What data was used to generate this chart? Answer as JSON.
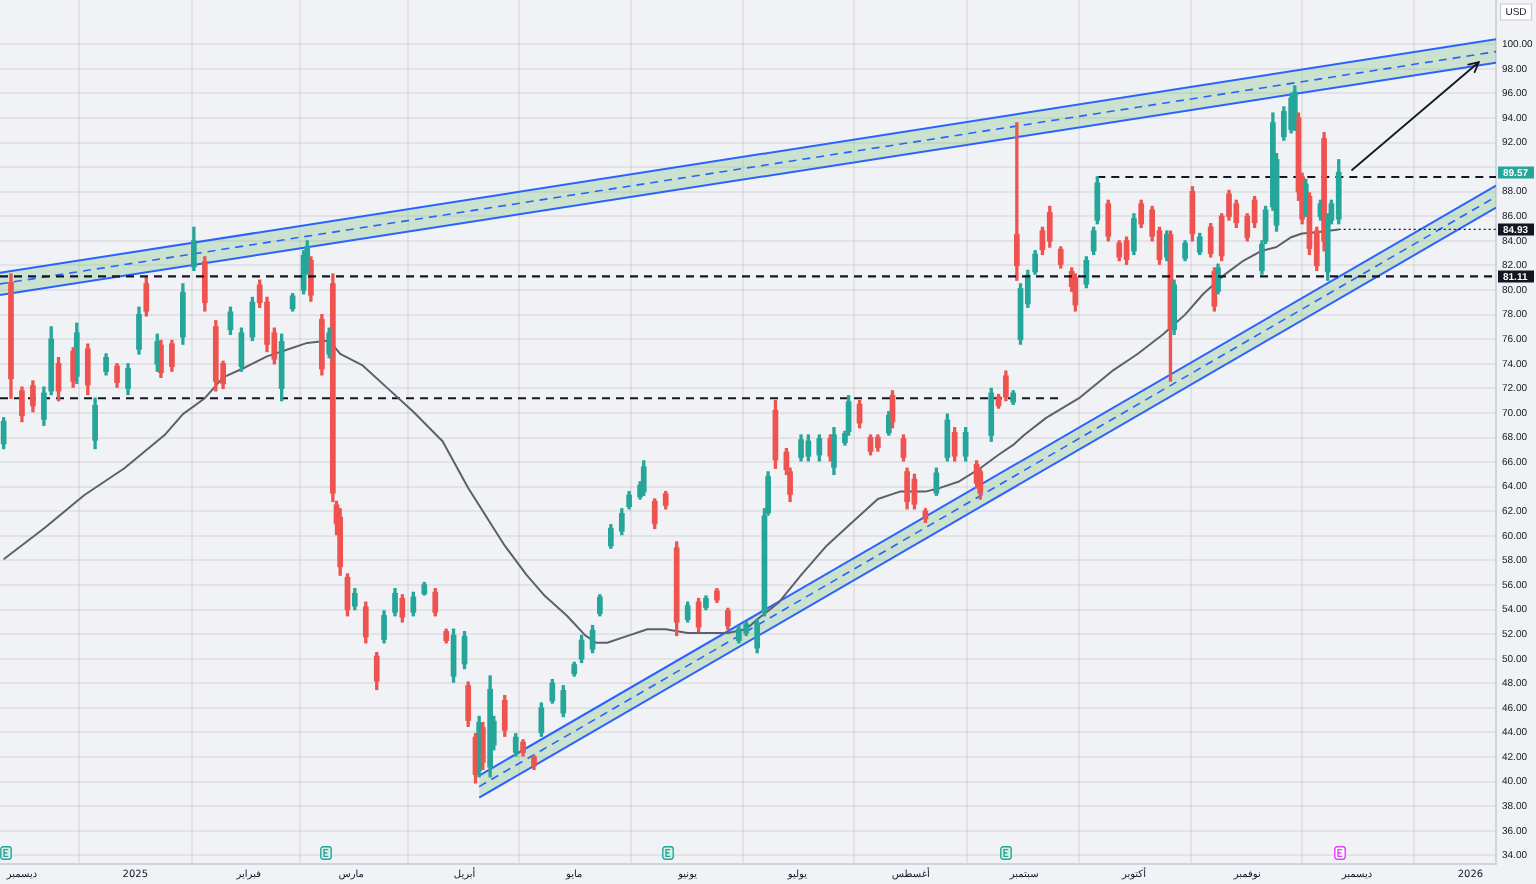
{
  "chart_data": {
    "type": "candlestick",
    "ylabel": "USD",
    "xlim": [
      "2024-11-25",
      "2026-01-08"
    ],
    "xticks": [
      {
        "value": "2024-12-01",
        "label": "ديسمبر"
      },
      {
        "value": "2025-01-01",
        "label": "2025"
      },
      {
        "value": "2025-02-01",
        "label": "فبراير"
      },
      {
        "value": "2025-03-01",
        "label": "مارس"
      },
      {
        "value": "2025-04-01",
        "label": "أبريل"
      },
      {
        "value": "2025-05-01",
        "label": "مايو"
      },
      {
        "value": "2025-06-01",
        "label": "يونيو"
      },
      {
        "value": "2025-07-01",
        "label": "يوليو"
      },
      {
        "value": "2025-08-01",
        "label": "أغسطس"
      },
      {
        "value": "2025-09-01",
        "label": "سبتمبر"
      },
      {
        "value": "2025-10-01",
        "label": "أكتوبر"
      },
      {
        "value": "2025-11-01",
        "label": "نوفمبر"
      },
      {
        "value": "2025-12-01",
        "label": "ديسمبر"
      },
      {
        "value": "2026-01-01",
        "label": "2026"
      }
    ],
    "ylim": [
      33.3,
      103.6
    ],
    "yticks": [
      {
        "value": 34,
        "label": "34.00"
      },
      {
        "value": 36,
        "label": "36.00"
      },
      {
        "value": 38,
        "label": "38.00"
      },
      {
        "value": 40,
        "label": "40.00"
      },
      {
        "value": 42,
        "label": "42.00"
      },
      {
        "value": 44,
        "label": "44.00"
      },
      {
        "value": 46,
        "label": "46.00"
      },
      {
        "value": 48,
        "label": "48.00"
      },
      {
        "value": 50,
        "label": "50.00"
      },
      {
        "value": 52,
        "label": "52.00"
      },
      {
        "value": 54,
        "label": "54.00"
      },
      {
        "value": 56,
        "label": "56.00"
      },
      {
        "value": 58,
        "label": "58.00"
      },
      {
        "value": 60,
        "label": "60.00"
      },
      {
        "value": 62,
        "label": "62.00"
      },
      {
        "value": 64,
        "label": "64.00"
      },
      {
        "value": 66,
        "label": "66.00"
      },
      {
        "value": 68,
        "label": "68.00"
      },
      {
        "value": 70,
        "label": "70.00"
      },
      {
        "value": 72,
        "label": "72.00"
      },
      {
        "value": 74,
        "label": "74.00"
      },
      {
        "value": 76,
        "label": "76.00"
      },
      {
        "value": 78,
        "label": "78.00"
      },
      {
        "value": 80,
        "label": "80.00"
      },
      {
        "value": 82,
        "label": "82.00"
      },
      {
        "value": 84,
        "label": "84.00"
      },
      {
        "value": 86,
        "label": "86.00"
      },
      {
        "value": 88,
        "label": "88.00"
      },
      {
        "value": 90,
        "label": null
      },
      {
        "value": 92,
        "label": "92.00"
      },
      {
        "value": 94,
        "label": "94.00"
      },
      {
        "value": 96,
        "label": "96.00"
      },
      {
        "value": 98,
        "label": "98.00"
      },
      {
        "value": 100,
        "label": "100.00"
      }
    ],
    "grid": true,
    "ref_lines": [
      {
        "axis": "y",
        "value": 81.11,
        "label": "81.11",
        "color": "#131722",
        "line_style": "dashed"
      }
    ],
    "annotations": [
      {
        "text": "89.57",
        "x": "2026-01-08",
        "y": 89.57
      },
      {
        "text": "84.93",
        "x": "2025-11-26",
        "y": 84.93
      }
    ],
    "series": [
      {
        "x": [
          "2024-11-26",
          "2024-11-28",
          "2024-12-01",
          "2024-12-04",
          "2024-12-07",
          "2024-12-09",
          "2024-12-11",
          "2024-12-15",
          "2024-12-16",
          "2024-12-19",
          "2024-12-21",
          "2024-12-24",
          "2024-12-27",
          "2024-12-30",
          "2025-01-02",
          "2025-01-04",
          "2025-01-07",
          "2025-01-08",
          "2025-01-11",
          "2025-01-14",
          "2025-01-17",
          "2025-01-20",
          "2025-01-23",
          "2025-01-25",
          "2025-01-27",
          "2025-01-30",
          "2025-02-02",
          "2025-02-04",
          "2025-02-06",
          "2025-02-08",
          "2025-02-10",
          "2025-02-13",
          "2025-02-16",
          "2025-02-17",
          "2025-02-18",
          "2025-02-21",
          "2025-02-23",
          "2025-02-24",
          "2025-02-25",
          "2025-02-26",
          "2025-02-28",
          "2025-03-02",
          "2025-03-05",
          "2025-03-08",
          "2025-03-10",
          "2025-03-13",
          "2025-03-15",
          "2025-03-18",
          "2025-03-21",
          "2025-03-24",
          "2025-03-27",
          "2025-03-29",
          "2025-04-01",
          "2025-04-02",
          "2025-04-04",
          "2025-04-05",
          "2025-04-06",
          "2025-04-08",
          "2025-04-09",
          "2025-04-12",
          "2025-04-15",
          "2025-04-17",
          "2025-04-20",
          "2025-04-22",
          "2025-04-25",
          "2025-04-28",
          "2025-05-01",
          "2025-05-03",
          "2025-05-06",
          "2025-05-08",
          "2025-05-11",
          "2025-05-14",
          "2025-05-16",
          "2025-05-19",
          "2025-05-20",
          "2025-05-23",
          "2025-05-26",
          "2025-05-29",
          "2025-06-01",
          "2025-06-04",
          "2025-06-06",
          "2025-06-09",
          "2025-06-12",
          "2025-06-15",
          "2025-06-17",
          "2025-06-20",
          "2025-06-22",
          "2025-06-23",
          "2025-06-25",
          "2025-06-28",
          "2025-06-29",
          "2025-07-02",
          "2025-07-04",
          "2025-07-07",
          "2025-07-10",
          "2025-07-11",
          "2025-07-14",
          "2025-07-15",
          "2025-07-18",
          "2025-07-21",
          "2025-07-23",
          "2025-07-26",
          "2025-07-27",
          "2025-07-30",
          "2025-07-31",
          "2025-08-02",
          "2025-08-05",
          "2025-08-08",
          "2025-08-11",
          "2025-08-13",
          "2025-08-16",
          "2025-08-19",
          "2025-08-20",
          "2025-08-23",
          "2025-08-25",
          "2025-08-27",
          "2025-08-29",
          "2025-08-30",
          "2025-08-31",
          "2025-09-02",
          "2025-09-04",
          "2025-09-06",
          "2025-09-08",
          "2025-09-11",
          "2025-09-14",
          "2025-09-15",
          "2025-09-18",
          "2025-09-20",
          "2025-09-21",
          "2025-09-24",
          "2025-09-27",
          "2025-09-29",
          "2025-10-01",
          "2025-10-03",
          "2025-10-06",
          "2025-10-08",
          "2025-10-10",
          "2025-10-11",
          "2025-10-12",
          "2025-10-15",
          "2025-10-17",
          "2025-10-19",
          "2025-10-22",
          "2025-10-23",
          "2025-10-24",
          "2025-10-25",
          "2025-10-27",
          "2025-10-29",
          "2025-11-01",
          "2025-11-03",
          "2025-11-05",
          "2025-11-06",
          "2025-11-08",
          "2025-11-09",
          "2025-11-11",
          "2025-11-13",
          "2025-11-14",
          "2025-11-15",
          "2025-11-16",
          "2025-11-17",
          "2025-11-18",
          "2025-11-20",
          "2025-11-21",
          "2025-11-22",
          "2025-11-23",
          "2025-11-24",
          "2025-11-26"
        ],
        "ohlc": [
          [
            67.5,
            69.6,
            67.1,
            69.3
          ],
          [
            80.6,
            81.3,
            71.2,
            72.8
          ],
          [
            71.8,
            72.1,
            69.3,
            69.8
          ],
          [
            72.2,
            72.6,
            70.1,
            70.6
          ],
          [
            69.5,
            72.1,
            69.0,
            71.6
          ],
          [
            71.8,
            77.0,
            71.5,
            76.0
          ],
          [
            74.0,
            74.5,
            71.0,
            71.8
          ],
          [
            75.0,
            75.3,
            72.1,
            72.6
          ],
          [
            73.0,
            77.3,
            72.4,
            76.5
          ],
          [
            75.2,
            75.6,
            71.5,
            72.3
          ],
          [
            67.8,
            71.2,
            67.1,
            70.6
          ],
          [
            73.4,
            74.8,
            73.1,
            74.5
          ],
          [
            73.8,
            74.0,
            72.1,
            72.5
          ],
          [
            72.0,
            74.0,
            71.5,
            73.6
          ],
          [
            75.2,
            78.6,
            74.8,
            78.0
          ],
          [
            80.5,
            81.0,
            77.9,
            78.3
          ],
          [
            74.0,
            76.4,
            73.4,
            75.8
          ],
          [
            75.5,
            75.9,
            72.9,
            73.3
          ],
          [
            75.6,
            75.9,
            73.4,
            73.8
          ],
          [
            76.2,
            80.5,
            75.6,
            79.8
          ],
          [
            81.9,
            85.1,
            81.6,
            84.0
          ],
          [
            82.3,
            82.7,
            78.3,
            79.0
          ],
          [
            77.0,
            77.5,
            71.8,
            72.6
          ],
          [
            74.0,
            74.2,
            72.0,
            72.4
          ],
          [
            76.8,
            78.6,
            76.4,
            78.2
          ],
          [
            73.8,
            76.9,
            73.4,
            76.5
          ],
          [
            76.2,
            79.4,
            75.9,
            79.0
          ],
          [
            80.4,
            80.8,
            78.6,
            79.0
          ],
          [
            79.0,
            79.4,
            75.0,
            75.6
          ],
          [
            76.5,
            76.9,
            74.0,
            74.4
          ],
          [
            72.0,
            76.4,
            71.0,
            75.8
          ],
          [
            78.5,
            79.7,
            78.3,
            79.5
          ],
          [
            80.0,
            83.2,
            79.7,
            82.8
          ],
          [
            81.6,
            84.0,
            81.3,
            83.5
          ],
          [
            82.4,
            82.7,
            79.1,
            79.6
          ],
          [
            77.6,
            78.0,
            73.1,
            73.6
          ],
          [
            74.8,
            76.9,
            74.5,
            76.5
          ],
          [
            80.5,
            81.3,
            62.8,
            63.5
          ],
          [
            62.5,
            62.8,
            60.1,
            61.0
          ],
          [
            61.5,
            62.2,
            56.8,
            57.5
          ],
          [
            56.6,
            56.9,
            53.5,
            54.0
          ],
          [
            54.3,
            55.7,
            54.0,
            55.3
          ],
          [
            54.2,
            54.6,
            51.3,
            51.8
          ],
          [
            50.2,
            50.5,
            47.5,
            48.2
          ],
          [
            51.6,
            53.9,
            51.3,
            53.5
          ],
          [
            53.8,
            55.7,
            53.5,
            55.3
          ],
          [
            54.9,
            55.2,
            53.0,
            53.4
          ],
          [
            53.8,
            55.4,
            53.5,
            55.0
          ],
          [
            55.3,
            56.2,
            55.2,
            56.0
          ],
          [
            55.4,
            55.7,
            53.5,
            53.8
          ],
          [
            52.2,
            52.4,
            51.3,
            51.5
          ],
          [
            48.6,
            52.4,
            48.1,
            51.9
          ],
          [
            49.6,
            52.2,
            49.2,
            51.8
          ],
          [
            47.8,
            48.1,
            44.5,
            45.0
          ],
          [
            43.6,
            43.9,
            39.9,
            40.6
          ],
          [
            40.9,
            45.3,
            40.4,
            44.8
          ],
          [
            44.4,
            44.8,
            41.0,
            41.6
          ],
          [
            41.2,
            48.6,
            40.4,
            47.5
          ],
          [
            43.0,
            45.3,
            42.6,
            44.9
          ],
          [
            46.6,
            47.0,
            43.7,
            44.2
          ],
          [
            42.4,
            43.9,
            42.1,
            43.6
          ],
          [
            43.2,
            43.4,
            42.1,
            42.4
          ],
          [
            42.0,
            42.1,
            41.0,
            41.3
          ],
          [
            44.0,
            46.4,
            43.7,
            46.0
          ],
          [
            46.6,
            48.3,
            46.4,
            48.0
          ],
          [
            45.6,
            47.8,
            45.3,
            47.4
          ],
          [
            48.8,
            49.7,
            48.6,
            49.5
          ],
          [
            50.0,
            51.9,
            49.7,
            51.5
          ],
          [
            50.8,
            52.7,
            50.5,
            52.3
          ],
          [
            53.7,
            55.2,
            53.5,
            55.0
          ],
          [
            59.2,
            60.9,
            59.0,
            60.6
          ],
          [
            60.4,
            62.2,
            60.1,
            61.8
          ],
          [
            62.4,
            63.6,
            62.2,
            63.3
          ],
          [
            63.2,
            64.4,
            63.0,
            64.1
          ],
          [
            63.6,
            66.1,
            63.3,
            65.6
          ],
          [
            62.8,
            63.0,
            60.6,
            61.0
          ],
          [
            63.4,
            63.6,
            62.2,
            62.5
          ],
          [
            59.0,
            59.5,
            51.9,
            53.0
          ],
          [
            53.2,
            54.6,
            53.0,
            54.3
          ],
          [
            54.6,
            54.9,
            52.2,
            52.6
          ],
          [
            54.2,
            55.1,
            54.0,
            54.9
          ],
          [
            55.5,
            55.7,
            54.6,
            54.8
          ],
          [
            53.9,
            54.1,
            52.4,
            52.7
          ],
          [
            51.5,
            52.7,
            51.3,
            52.4
          ],
          [
            52.1,
            53.0,
            51.9,
            52.8
          ],
          [
            50.9,
            53.2,
            50.5,
            52.9
          ],
          [
            53.8,
            62.2,
            53.5,
            61.6
          ],
          [
            61.9,
            65.2,
            61.7,
            64.8
          ],
          [
            70.2,
            71.0,
            65.5,
            66.2
          ],
          [
            66.8,
            67.1,
            65.0,
            65.4
          ],
          [
            65.2,
            65.5,
            62.8,
            63.4
          ],
          [
            66.4,
            68.2,
            66.1,
            67.8
          ],
          [
            66.5,
            68.2,
            66.1,
            67.7
          ],
          [
            66.6,
            68.2,
            66.1,
            67.9
          ],
          [
            67.9,
            68.2,
            66.1,
            66.5
          ],
          [
            65.6,
            68.8,
            65.0,
            68.2
          ],
          [
            67.6,
            68.5,
            67.4,
            68.3
          ],
          [
            68.5,
            71.4,
            68.2,
            70.9
          ],
          [
            70.7,
            71.0,
            68.8,
            69.2
          ],
          [
            68.0,
            68.2,
            66.6,
            66.9
          ],
          [
            68.0,
            68.2,
            66.9,
            67.2
          ],
          [
            68.4,
            70.1,
            68.2,
            69.8
          ],
          [
            71.4,
            71.8,
            68.8,
            69.3
          ],
          [
            67.9,
            68.2,
            66.1,
            66.4
          ],
          [
            65.2,
            65.5,
            62.2,
            62.8
          ],
          [
            64.6,
            65.0,
            62.2,
            62.6
          ],
          [
            62.0,
            62.2,
            61.1,
            61.4
          ],
          [
            63.5,
            65.5,
            63.3,
            65.1
          ],
          [
            66.4,
            69.9,
            66.1,
            69.4
          ],
          [
            68.4,
            68.8,
            66.1,
            66.5
          ],
          [
            66.5,
            68.8,
            66.1,
            68.4
          ],
          [
            65.8,
            66.1,
            63.9,
            64.3
          ],
          [
            65.2,
            65.5,
            63.0,
            63.5
          ],
          [
            68.2,
            72.0,
            67.7,
            71.6
          ],
          [
            71.3,
            71.5,
            70.4,
            70.6
          ],
          [
            73.0,
            73.4,
            71.0,
            71.3
          ],
          [
            70.9,
            71.8,
            70.7,
            71.6
          ],
          [
            84.5,
            93.6,
            80.8,
            82.0
          ],
          [
            76.0,
            80.5,
            75.6,
            80.1
          ],
          [
            78.9,
            81.6,
            78.6,
            81.2
          ],
          [
            81.5,
            83.2,
            81.3,
            82.9
          ],
          [
            84.8,
            85.1,
            82.9,
            83.3
          ],
          [
            86.3,
            86.8,
            83.5,
            84.0
          ],
          [
            83.3,
            83.5,
            81.8,
            82.1
          ],
          [
            81.5,
            81.8,
            79.9,
            80.3
          ],
          [
            81.0,
            81.3,
            78.3,
            78.8
          ],
          [
            80.5,
            82.7,
            80.2,
            82.4
          ],
          [
            83.2,
            85.1,
            82.9,
            84.8
          ],
          [
            85.7,
            89.2,
            85.4,
            88.7
          ],
          [
            87.0,
            87.3,
            84.0,
            84.4
          ],
          [
            83.8,
            84.0,
            82.4,
            82.7
          ],
          [
            84.0,
            84.3,
            82.1,
            82.5
          ],
          [
            83.2,
            86.2,
            82.9,
            85.8
          ],
          [
            87.0,
            87.3,
            85.1,
            85.4
          ],
          [
            86.5,
            86.8,
            84.0,
            84.4
          ],
          [
            84.8,
            85.1,
            82.1,
            82.5
          ],
          [
            82.7,
            84.8,
            82.4,
            84.5
          ],
          [
            84.5,
            84.8,
            72.6,
            76.8
          ],
          [
            76.8,
            80.8,
            76.4,
            80.4
          ],
          [
            82.6,
            84.0,
            82.4,
            83.8
          ],
          [
            88.0,
            88.4,
            84.0,
            84.6
          ],
          [
            83.1,
            84.6,
            82.9,
            84.3
          ],
          [
            85.1,
            85.4,
            82.7,
            83.0
          ],
          [
            81.5,
            81.8,
            78.3,
            78.7
          ],
          [
            79.9,
            82.1,
            79.7,
            81.8
          ],
          [
            86.0,
            86.2,
            82.4,
            82.8
          ],
          [
            87.8,
            88.1,
            85.7,
            86.0
          ],
          [
            87.0,
            87.3,
            85.1,
            85.5
          ],
          [
            86.0,
            86.2,
            84.0,
            84.3
          ],
          [
            87.3,
            87.6,
            85.1,
            85.5
          ],
          [
            81.6,
            84.0,
            81.3,
            83.7
          ],
          [
            84.0,
            86.8,
            83.8,
            86.5
          ],
          [
            86.8,
            94.4,
            86.5,
            93.6
          ],
          [
            85.3,
            91.1,
            84.8,
            90.6
          ],
          [
            92.5,
            94.9,
            92.2,
            94.5
          ],
          [
            93.1,
            96.0,
            92.8,
            95.6
          ],
          [
            93.3,
            96.6,
            93.0,
            96.1
          ],
          [
            94.0,
            94.4,
            87.3,
            88.0
          ],
          [
            89.2,
            89.5,
            85.4,
            85.8
          ],
          [
            86.3,
            89.0,
            86.0,
            88.6
          ],
          [
            87.6,
            87.9,
            82.9,
            83.4
          ],
          [
            84.8,
            85.1,
            81.6,
            82.0
          ],
          [
            86.0,
            87.3,
            85.7,
            87.0
          ],
          [
            92.3,
            92.8,
            83.2,
            84.0
          ],
          [
            81.5,
            86.2,
            80.8,
            85.8
          ],
          [
            85.7,
            87.3,
            85.4,
            87.0
          ],
          [
            85.8,
            90.6,
            85.4,
            89.57
          ]
        ],
        "colors": [
          "#26a69a",
          "#ef5350",
          "#ef5350",
          "#ef5350",
          "#26a69a",
          "#26a69a",
          "#ef5350",
          "#ef5350",
          "#26a69a",
          "#ef5350",
          "#26a69a",
          "#26a69a",
          "#ef5350",
          "#26a69a",
          "#26a69a",
          "#ef5350",
          "#26a69a",
          "#ef5350",
          "#ef5350",
          "#26a69a",
          "#26a69a",
          "#ef5350",
          "#ef5350",
          "#ef5350",
          "#26a69a",
          "#26a69a",
          "#26a69a",
          "#ef5350",
          "#ef5350",
          "#ef5350",
          "#26a69a",
          "#26a69a",
          "#26a69a",
          "#26a69a",
          "#ef5350",
          "#ef5350",
          "#26a69a",
          "#ef5350",
          "#ef5350",
          "#ef5350",
          "#ef5350",
          "#26a69a",
          "#ef5350",
          "#ef5350",
          "#26a69a",
          "#26a69a",
          "#ef5350",
          "#26a69a",
          "#26a69a",
          "#ef5350",
          "#ef5350",
          "#26a69a",
          "#26a69a",
          "#ef5350",
          "#ef5350",
          "#26a69a",
          "#ef5350",
          "#26a69a",
          "#26a69a",
          "#ef5350",
          "#26a69a",
          "#ef5350",
          "#ef5350",
          "#26a69a",
          "#26a69a",
          "#26a69a",
          "#26a69a",
          "#26a69a",
          "#26a69a",
          "#26a69a",
          "#26a69a",
          "#26a69a",
          "#26a69a",
          "#26a69a",
          "#26a69a",
          "#ef5350",
          "#ef5350",
          "#ef5350",
          "#26a69a",
          "#ef5350",
          "#26a69a",
          "#ef5350",
          "#ef5350",
          "#26a69a",
          "#26a69a",
          "#26a69a",
          "#26a69a",
          "#26a69a",
          "#ef5350",
          "#ef5350",
          "#ef5350",
          "#26a69a",
          "#26a69a",
          "#26a69a",
          "#ef5350",
          "#26a69a",
          "#26a69a",
          "#26a69a",
          "#ef5350",
          "#ef5350",
          "#ef5350",
          "#26a69a",
          "#ef5350",
          "#ef5350",
          "#ef5350",
          "#ef5350",
          "#ef5350",
          "#26a69a",
          "#26a69a",
          "#ef5350",
          "#26a69a",
          "#ef5350",
          "#ef5350",
          "#26a69a",
          "#ef5350",
          "#ef5350",
          "#26a69a",
          "#ef5350",
          "#26a69a",
          "#26a69a",
          "#26a69a",
          "#ef5350",
          "#ef5350",
          "#ef5350",
          "#ef5350",
          "#ef5350",
          "#26a69a",
          "#26a69a",
          "#26a69a",
          "#ef5350",
          "#ef5350",
          "#ef5350",
          "#26a69a",
          "#ef5350",
          "#ef5350",
          "#ef5350",
          "#26a69a",
          "#ef5350",
          "#26a69a",
          "#26a69a",
          "#ef5350",
          "#26a69a",
          "#ef5350",
          "#ef5350",
          "#26a69a",
          "#ef5350",
          "#ef5350",
          "#ef5350",
          "#ef5350",
          "#ef5350",
          "#26a69a",
          "#26a69a",
          "#26a69a",
          "#26a69a",
          "#26a69a",
          "#26a69a",
          "#26a69a",
          "#ef5350",
          "#ef5350",
          "#26a69a",
          "#ef5350",
          "#ef5350",
          "#26a69a",
          "#ef5350",
          "#26a69a",
          "#26a69a",
          "#26a69a"
        ]
      },
      {
        "type": "line",
        "color": "#5d606b",
        "x": [
          "2024-11-26",
          "2024-12-07",
          "2024-12-18",
          "2024-12-29",
          "2025-01-09",
          "2025-01-14",
          "2025-01-20",
          "2025-01-25",
          "2025-01-31",
          "2025-02-06",
          "2025-02-10",
          "2025-02-17",
          "2025-02-23",
          "2025-02-26",
          "2025-03-04",
          "2025-03-11",
          "2025-03-18",
          "2025-03-26",
          "2025-04-02",
          "2025-04-09",
          "2025-04-12",
          "2025-04-18",
          "2025-04-23",
          "2025-04-29",
          "2025-05-04",
          "2025-05-07",
          "2025-05-10",
          "2025-05-16",
          "2025-05-21",
          "2025-05-26",
          "2025-06-01",
          "2025-06-06",
          "2025-06-12",
          "2025-06-17",
          "2025-06-20",
          "2025-06-26",
          "2025-07-02",
          "2025-07-09",
          "2025-07-16",
          "2025-07-23",
          "2025-07-29",
          "2025-08-05",
          "2025-08-09",
          "2025-08-14",
          "2025-08-20",
          "2025-08-25",
          "2025-08-29",
          "2025-09-01",
          "2025-09-07",
          "2025-09-16",
          "2025-09-25",
          "2025-10-02",
          "2025-10-09",
          "2025-10-15",
          "2025-10-20",
          "2025-10-26",
          "2025-10-31",
          "2025-11-05",
          "2025-11-09",
          "2025-11-13",
          "2025-11-16",
          "2025-11-20",
          "2025-11-26"
        ],
        "values": [
          58.1,
          60.6,
          63.3,
          65.5,
          68.2,
          69.9,
          71.2,
          72.9,
          73.7,
          74.6,
          75.0,
          75.7,
          75.9,
          74.8,
          73.9,
          72.0,
          70.1,
          67.7,
          63.9,
          60.6,
          59.2,
          56.8,
          55.1,
          53.5,
          51.9,
          51.3,
          51.3,
          51.9,
          52.4,
          52.4,
          52.1,
          52.1,
          52.1,
          52.4,
          53.2,
          54.6,
          56.8,
          59.2,
          61.1,
          63.0,
          63.6,
          63.6,
          63.9,
          64.4,
          65.5,
          66.6,
          67.4,
          68.2,
          69.6,
          71.2,
          73.4,
          74.8,
          76.4,
          78.0,
          79.7,
          81.3,
          82.4,
          83.2,
          83.5,
          84.3,
          84.6,
          84.7,
          84.93
        ]
      },
      {
        "type": "line",
        "color": "#2962ff",
        "x": [
          "2024-11-25",
          "2026-01-08"
        ],
        "values": [
          79.6,
          98.5
        ]
      },
      {
        "type": "line",
        "color": "#2962ff",
        "x": [
          "2024-11-25",
          "2026-01-08"
        ],
        "values": [
          81.4,
          100.4
        ]
      },
      {
        "type": "line",
        "color": "#2962ff",
        "line_style": "dashed",
        "x": [
          "2024-11-25",
          "2026-01-08"
        ],
        "values": [
          80.5,
          99.4
        ],
        "lower": [
          79.6,
          98.5
        ],
        "upper": [
          81.4,
          100.4
        ]
      },
      {
        "type": "line",
        "color": "#2962ff",
        "x": [
          "2025-04-05",
          "2026-01-08"
        ],
        "values": [
          38.7,
          86.7
        ]
      },
      {
        "type": "line",
        "color": "#2962ff",
        "x": [
          "2025-04-05",
          "2026-01-08"
        ],
        "values": [
          40.5,
          88.5
        ]
      },
      {
        "type": "line",
        "color": "#2962ff",
        "line_style": "dashed",
        "x": [
          "2025-04-05",
          "2026-01-08"
        ],
        "values": [
          39.6,
          87.6
        ],
        "lower": [
          38.7,
          86.7
        ],
        "upper": [
          40.5,
          88.5
        ]
      },
      {
        "type": "line",
        "color": "#131722",
        "line_style": "dashed",
        "x": [
          "2024-11-25",
          "2025-09-11"
        ],
        "values": [
          71.2,
          71.2
        ]
      },
      {
        "type": "line",
        "color": "#131722",
        "line_style": "dashed",
        "x": [
          "2025-09-21",
          "2026-01-08"
        ],
        "values": [
          89.2,
          89.2
        ]
      }
    ]
  }
}
